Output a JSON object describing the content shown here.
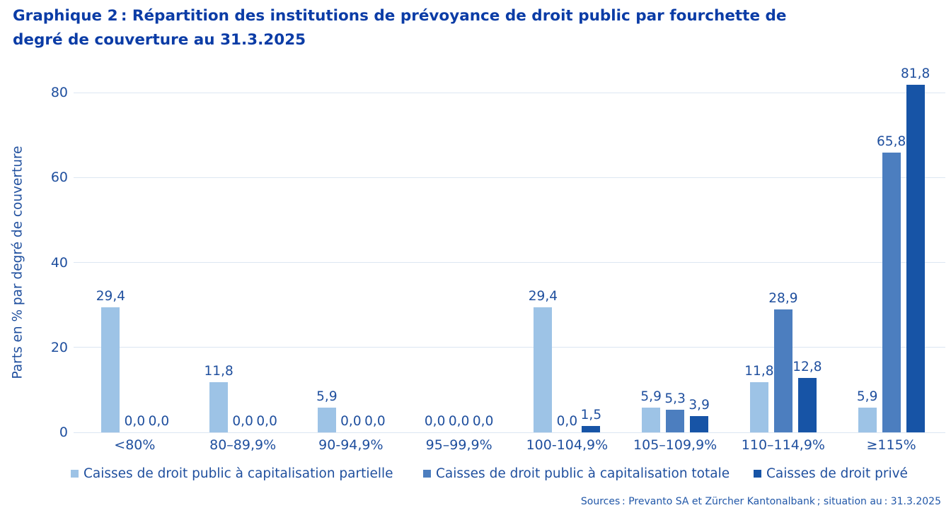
{
  "header": {
    "line1": "Graphique 2 : Répartition des institutions de prévoyance de droit public par fourchette de",
    "line2": "degré de couverture au 31.3.2025"
  },
  "footer": {
    "source": "Sources : Prevanto SA et Zürcher Kantonalbank ; situation au : 31.3.2025"
  },
  "colors": {
    "title_color": "#0B3CA6",
    "navy": "#1F4F9E",
    "grid_color": "#DCE6F2",
    "source_color": "#2157A8"
  },
  "chart_data": {
    "type": "bar",
    "title": "Graphique 2 : Répartition des institutions de prévoyance de droit public par fourchette de degré de couverture au 31.3.2025",
    "xlabel": "",
    "ylabel": "Parts en % par degré de couverture",
    "categories": [
      "<80%",
      "80–89,9%",
      "90-94,9%",
      "95–99,9%",
      "100-104,9%",
      "105–109,9%",
      "110–114,9%",
      "≥115%"
    ],
    "series": [
      {
        "name": "Caisses de droit public à capitalisation partielle",
        "color": "#9DC3E6",
        "values": [
          29.4,
          11.8,
          5.9,
          0.0,
          29.4,
          5.9,
          11.8,
          5.9
        ]
      },
      {
        "name": "Caisses de droit public à capitalisation totale",
        "color": "#4C7EBF",
        "values": [
          0.0,
          0.0,
          0.0,
          0.0,
          0.0,
          5.3,
          28.9,
          65.8
        ]
      },
      {
        "name": "Caisses de droit privé",
        "color": "#1754A6",
        "values": [
          0.0,
          0.0,
          0.0,
          0.0,
          1.5,
          3.9,
          12.8,
          81.8
        ]
      }
    ],
    "yticks": [
      0,
      20,
      40,
      60,
      80
    ],
    "ylim": [
      0,
      84
    ],
    "grid": true,
    "legend_position": "bottom",
    "value_labels": "above-bars, decimal comma, one decimal place"
  }
}
